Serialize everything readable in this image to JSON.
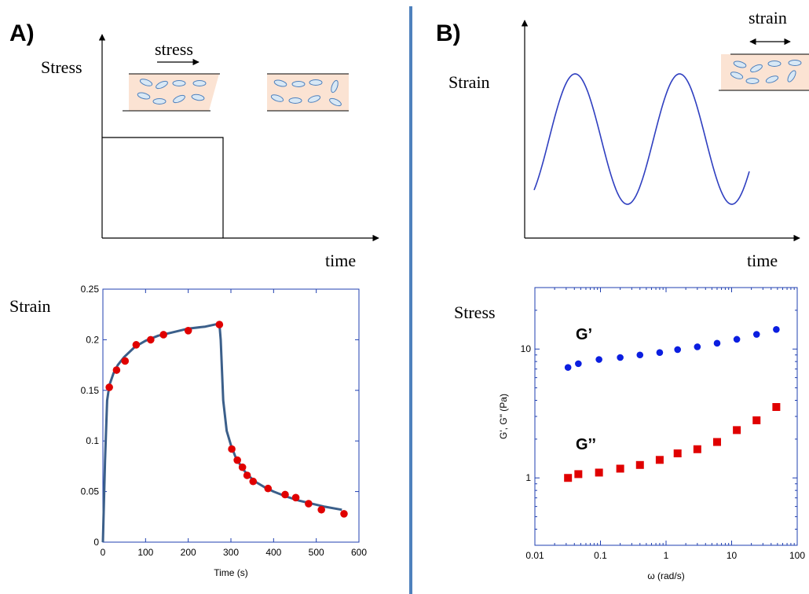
{
  "panels": {
    "a": {
      "label": "A)",
      "schematic": {
        "y_label": "Stress",
        "x_label": "time",
        "arrow_label": "stress"
      },
      "strain_label": "Strain"
    },
    "b": {
      "label": "B)",
      "schematic": {
        "y_label": "Strain",
        "x_label": "time",
        "arrow_label": "strain"
      },
      "stress_label": "Stress"
    }
  },
  "colors": {
    "divider": "#4f81bd",
    "axis_frame": "#1f3fb0",
    "fit_curve": "#3b5f8a",
    "points_red": "#e00000",
    "points_blue": "#0b1ee0",
    "sine": "#2f3fc0",
    "cell_fill": "#fbe3d3",
    "particle_fill": "#d8e8f5",
    "particle_stroke": "#4f81bd"
  },
  "chart_data": [
    {
      "type": "scatter",
      "xlabel": "Time (s)",
      "ylabel": "",
      "xlim": [
        0,
        600
      ],
      "ylim": [
        0,
        0.25
      ],
      "x_ticks": [
        "0",
        "100",
        "200",
        "300",
        "400",
        "500",
        "600"
      ],
      "y_ticks": [
        "0",
        "0.05",
        "0.1",
        "0.15",
        "0.2",
        "0.25"
      ],
      "grid": false,
      "series": [
        {
          "marker": "circle",
          "x": [
            15,
            32,
            52,
            78,
            112,
            142,
            200,
            273,
            302,
            315,
            327,
            338,
            352,
            387,
            427,
            452,
            482,
            512,
            565
          ],
          "y": [
            0.153,
            0.17,
            0.179,
            0.195,
            0.2,
            0.205,
            0.209,
            0.215,
            0.092,
            0.081,
            0.074,
            0.066,
            0.06,
            0.053,
            0.047,
            0.044,
            0.038,
            0.032,
            0.028
          ]
        }
      ],
      "fit_curve": {
        "x": [
          0,
          5,
          10,
          15,
          25,
          35,
          50,
          75,
          100,
          130,
          160,
          200,
          240,
          273,
          276,
          282,
          290,
          300,
          310,
          325,
          340,
          360,
          380,
          400,
          430,
          460,
          490,
          520,
          560
        ],
        "y": [
          0,
          0.08,
          0.14,
          0.155,
          0.167,
          0.175,
          0.183,
          0.193,
          0.199,
          0.204,
          0.207,
          0.211,
          0.213,
          0.216,
          0.2,
          0.14,
          0.11,
          0.096,
          0.085,
          0.074,
          0.066,
          0.059,
          0.054,
          0.05,
          0.045,
          0.041,
          0.038,
          0.035,
          0.032
        ]
      }
    },
    {
      "type": "scatter",
      "xscale": "log",
      "yscale": "log",
      "xlabel": "ω (rad/s)",
      "ylabel": "G', G\" (Pa)",
      "xlim": [
        0.01,
        100
      ],
      "ylim": [
        0.3,
        30
      ],
      "x_ticks": [
        "0.01",
        "0.1",
        "1",
        "10",
        "100"
      ],
      "y_ticks": [
        "1",
        "10"
      ],
      "grid": false,
      "series": [
        {
          "name": "G’",
          "marker": "circle",
          "x": [
            0.032,
            0.046,
            0.095,
            0.2,
            0.4,
            0.8,
            1.5,
            3.0,
            6.0,
            12.0,
            24.0,
            48.0
          ],
          "y": [
            7.2,
            7.7,
            8.3,
            8.6,
            9.0,
            9.4,
            9.9,
            10.4,
            11.1,
            11.9,
            13.0,
            14.2
          ]
        },
        {
          "name": "G’’",
          "marker": "square",
          "x": [
            0.032,
            0.046,
            0.095,
            0.2,
            0.4,
            0.8,
            1.5,
            3.0,
            6.0,
            12.0,
            24.0,
            48.0
          ],
          "y": [
            1.0,
            1.07,
            1.1,
            1.18,
            1.26,
            1.38,
            1.55,
            1.67,
            1.9,
            2.35,
            2.8,
            3.55
          ]
        }
      ]
    }
  ]
}
